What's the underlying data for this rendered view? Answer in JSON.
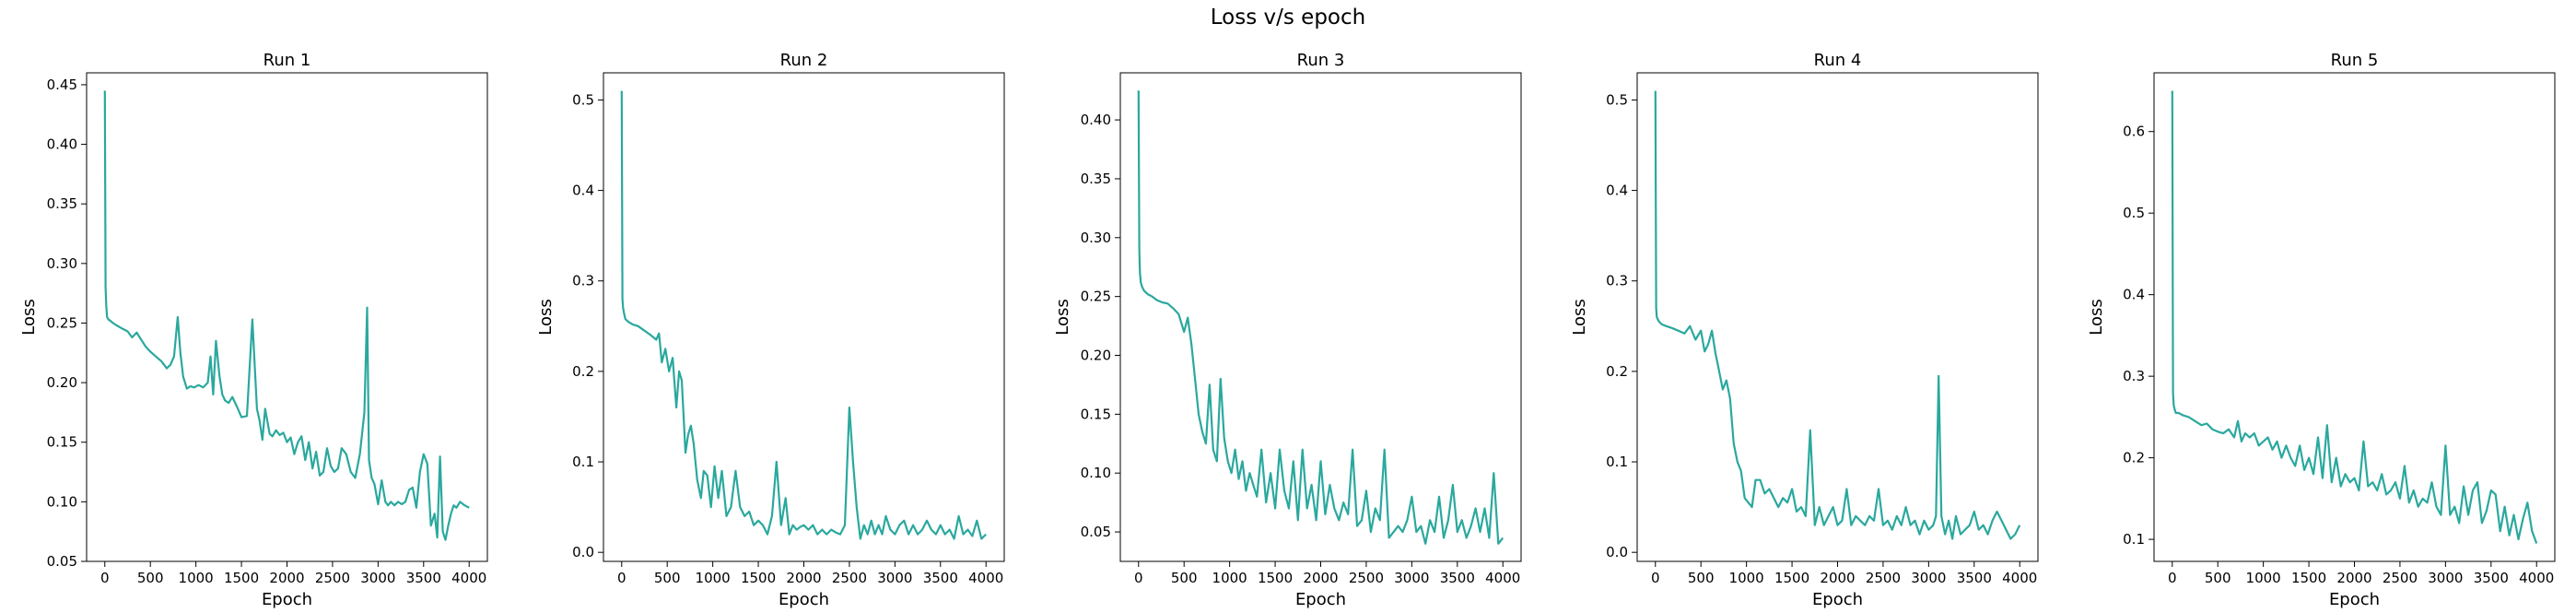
{
  "figure": {
    "suptitle": "Loss v/s epoch",
    "line_color": "#2aa89e"
  },
  "chart_data": [
    {
      "type": "line",
      "title": "Run 1",
      "xlabel": "Epoch",
      "ylabel": "Loss",
      "xlim": [
        -200,
        4200
      ],
      "ylim": [
        0.05,
        0.46
      ],
      "xticks": [
        0,
        500,
        1000,
        1500,
        2000,
        2500,
        3000,
        3500,
        4000
      ],
      "yticks": [
        0.05,
        0.1,
        0.15,
        0.2,
        0.25,
        0.3,
        0.35,
        0.4,
        0.45
      ],
      "ytick_labels": [
        "0.05",
        "0.10",
        "0.15",
        "0.20",
        "0.25",
        "0.30",
        "0.35",
        "0.40",
        "0.45"
      ],
      "x": [
        0,
        8,
        15,
        25,
        40,
        60,
        90,
        130,
        200,
        250,
        300,
        350,
        400,
        450,
        500,
        560,
        620,
        680,
        720,
        760,
        800,
        830,
        860,
        900,
        940,
        980,
        1030,
        1080,
        1130,
        1160,
        1190,
        1220,
        1260,
        1290,
        1320,
        1360,
        1400,
        1450,
        1500,
        1560,
        1620,
        1670,
        1700,
        1730,
        1760,
        1810,
        1840,
        1880,
        1920,
        1960,
        2000,
        2040,
        2080,
        2120,
        2160,
        2200,
        2240,
        2280,
        2320,
        2360,
        2400,
        2440,
        2480,
        2520,
        2560,
        2600,
        2650,
        2700,
        2750,
        2800,
        2850,
        2880,
        2900,
        2930,
        2960,
        3000,
        3040,
        3080,
        3110,
        3140,
        3180,
        3220,
        3260,
        3300,
        3340,
        3380,
        3420,
        3460,
        3500,
        3540,
        3580,
        3620,
        3650,
        3680,
        3710,
        3740,
        3770,
        3800,
        3830,
        3860,
        3900,
        3950,
        4000
      ],
      "y": [
        0.445,
        0.28,
        0.265,
        0.255,
        0.253,
        0.252,
        0.25,
        0.248,
        0.245,
        0.243,
        0.238,
        0.242,
        0.236,
        0.23,
        0.226,
        0.222,
        0.218,
        0.212,
        0.215,
        0.222,
        0.255,
        0.225,
        0.205,
        0.195,
        0.197,
        0.196,
        0.198,
        0.196,
        0.2,
        0.222,
        0.19,
        0.235,
        0.205,
        0.19,
        0.185,
        0.183,
        0.188,
        0.18,
        0.171,
        0.172,
        0.253,
        0.178,
        0.168,
        0.152,
        0.178,
        0.157,
        0.155,
        0.16,
        0.156,
        0.158,
        0.15,
        0.154,
        0.14,
        0.15,
        0.155,
        0.135,
        0.15,
        0.128,
        0.142,
        0.122,
        0.125,
        0.145,
        0.13,
        0.125,
        0.128,
        0.145,
        0.14,
        0.125,
        0.12,
        0.14,
        0.175,
        0.263,
        0.135,
        0.12,
        0.115,
        0.098,
        0.118,
        0.1,
        0.097,
        0.1,
        0.097,
        0.1,
        0.098,
        0.1,
        0.11,
        0.112,
        0.095,
        0.125,
        0.14,
        0.132,
        0.08,
        0.09,
        0.07,
        0.138,
        0.075,
        0.068,
        0.08,
        0.09,
        0.097,
        0.095,
        0.1,
        0.097,
        0.095
      ],
      "grid": false,
      "legend": "none"
    },
    {
      "type": "line",
      "title": "Run 2",
      "xlabel": "Epoch",
      "ylabel": "Loss",
      "xlim": [
        -200,
        4200
      ],
      "ylim": [
        -0.01,
        0.53
      ],
      "xticks": [
        0,
        500,
        1000,
        1500,
        2000,
        2500,
        3000,
        3500,
        4000
      ],
      "yticks": [
        0.0,
        0.1,
        0.2,
        0.3,
        0.4,
        0.5
      ],
      "ytick_labels": [
        "0.0",
        "0.1",
        "0.2",
        "0.3",
        "0.4",
        "0.5"
      ],
      "x": [
        0,
        8,
        15,
        25,
        40,
        70,
        120,
        180,
        250,
        320,
        380,
        410,
        440,
        480,
        520,
        560,
        600,
        630,
        660,
        700,
        730,
        760,
        790,
        830,
        870,
        900,
        940,
        980,
        1020,
        1060,
        1100,
        1150,
        1200,
        1250,
        1300,
        1350,
        1400,
        1450,
        1500,
        1550,
        1600,
        1650,
        1700,
        1750,
        1800,
        1840,
        1880,
        1920,
        1960,
        2000,
        2050,
        2100,
        2150,
        2200,
        2250,
        2300,
        2350,
        2400,
        2450,
        2500,
        2540,
        2580,
        2620,
        2660,
        2700,
        2740,
        2780,
        2820,
        2860,
        2900,
        2950,
        3000,
        3050,
        3100,
        3150,
        3200,
        3250,
        3300,
        3350,
        3400,
        3450,
        3500,
        3550,
        3600,
        3650,
        3700,
        3750,
        3800,
        3850,
        3900,
        3950,
        4000
      ],
      "y": [
        0.51,
        0.28,
        0.27,
        0.265,
        0.258,
        0.255,
        0.252,
        0.25,
        0.245,
        0.24,
        0.235,
        0.242,
        0.21,
        0.225,
        0.2,
        0.215,
        0.16,
        0.2,
        0.19,
        0.11,
        0.13,
        0.14,
        0.12,
        0.08,
        0.06,
        0.09,
        0.085,
        0.05,
        0.095,
        0.06,
        0.09,
        0.04,
        0.05,
        0.09,
        0.05,
        0.04,
        0.045,
        0.03,
        0.035,
        0.03,
        0.02,
        0.04,
        0.1,
        0.03,
        0.06,
        0.02,
        0.03,
        0.025,
        0.028,
        0.03,
        0.025,
        0.03,
        0.02,
        0.025,
        0.02,
        0.025,
        0.022,
        0.02,
        0.03,
        0.16,
        0.1,
        0.05,
        0.015,
        0.03,
        0.02,
        0.035,
        0.02,
        0.03,
        0.02,
        0.04,
        0.025,
        0.02,
        0.03,
        0.035,
        0.02,
        0.03,
        0.02,
        0.025,
        0.035,
        0.025,
        0.02,
        0.03,
        0.02,
        0.025,
        0.015,
        0.04,
        0.02,
        0.025,
        0.018,
        0.035,
        0.015,
        0.02
      ]
    },
    {
      "type": "line",
      "title": "Run 3",
      "xlabel": "Epoch",
      "ylabel": "Loss",
      "xlim": [
        -200,
        4200
      ],
      "ylim": [
        0.025,
        0.44
      ],
      "xticks": [
        0,
        500,
        1000,
        1500,
        2000,
        2500,
        3000,
        3500,
        4000
      ],
      "yticks": [
        0.05,
        0.1,
        0.15,
        0.2,
        0.25,
        0.3,
        0.35,
        0.4
      ],
      "ytick_labels": [
        "0.05",
        "0.10",
        "0.15",
        "0.20",
        "0.25",
        "0.30",
        "0.35",
        "0.40"
      ],
      "x": [
        0,
        8,
        15,
        25,
        40,
        60,
        100,
        150,
        200,
        260,
        320,
        380,
        440,
        500,
        540,
        580,
        620,
        660,
        700,
        740,
        780,
        820,
        860,
        900,
        940,
        980,
        1020,
        1060,
        1100,
        1140,
        1180,
        1220,
        1260,
        1300,
        1350,
        1400,
        1450,
        1500,
        1550,
        1600,
        1650,
        1700,
        1750,
        1800,
        1850,
        1900,
        1950,
        2000,
        2050,
        2100,
        2150,
        2200,
        2250,
        2300,
        2350,
        2400,
        2450,
        2500,
        2550,
        2600,
        2650,
        2700,
        2750,
        2800,
        2850,
        2900,
        2950,
        3000,
        3050,
        3100,
        3150,
        3200,
        3250,
        3300,
        3350,
        3400,
        3450,
        3500,
        3550,
        3600,
        3650,
        3700,
        3750,
        3800,
        3850,
        3900,
        3950,
        4000
      ],
      "y": [
        0.425,
        0.29,
        0.27,
        0.262,
        0.258,
        0.255,
        0.252,
        0.25,
        0.247,
        0.245,
        0.244,
        0.24,
        0.235,
        0.22,
        0.232,
        0.21,
        0.18,
        0.15,
        0.135,
        0.125,
        0.175,
        0.12,
        0.11,
        0.18,
        0.13,
        0.11,
        0.1,
        0.12,
        0.095,
        0.11,
        0.085,
        0.1,
        0.09,
        0.08,
        0.12,
        0.075,
        0.1,
        0.07,
        0.12,
        0.085,
        0.07,
        0.11,
        0.06,
        0.12,
        0.07,
        0.09,
        0.06,
        0.11,
        0.065,
        0.09,
        0.07,
        0.06,
        0.075,
        0.065,
        0.12,
        0.055,
        0.06,
        0.085,
        0.05,
        0.07,
        0.06,
        0.12,
        0.045,
        0.05,
        0.055,
        0.05,
        0.06,
        0.08,
        0.05,
        0.055,
        0.04,
        0.06,
        0.05,
        0.08,
        0.045,
        0.06,
        0.09,
        0.05,
        0.06,
        0.045,
        0.055,
        0.07,
        0.05,
        0.07,
        0.045,
        0.1,
        0.04,
        0.045
      ]
    },
    {
      "type": "line",
      "title": "Run 4",
      "xlabel": "Epoch",
      "ylabel": "Loss",
      "xlim": [
        -200,
        4200
      ],
      "ylim": [
        -0.01,
        0.53
      ],
      "xticks": [
        0,
        500,
        1000,
        1500,
        2000,
        2500,
        3000,
        3500,
        4000
      ],
      "yticks": [
        0.0,
        0.1,
        0.2,
        0.3,
        0.4,
        0.5
      ],
      "ytick_labels": [
        "0.0",
        "0.1",
        "0.2",
        "0.3",
        "0.4",
        "0.5"
      ],
      "x": [
        0,
        8,
        15,
        25,
        40,
        70,
        120,
        180,
        250,
        320,
        380,
        440,
        500,
        540,
        580,
        620,
        660,
        700,
        740,
        780,
        820,
        860,
        900,
        940,
        980,
        1020,
        1060,
        1100,
        1150,
        1200,
        1250,
        1300,
        1350,
        1400,
        1450,
        1500,
        1550,
        1600,
        1650,
        1700,
        1750,
        1800,
        1850,
        1900,
        1950,
        2000,
        2050,
        2100,
        2150,
        2200,
        2250,
        2300,
        2350,
        2400,
        2450,
        2500,
        2550,
        2600,
        2650,
        2700,
        2750,
        2800,
        2850,
        2900,
        2950,
        3000,
        3050,
        3080,
        3110,
        3140,
        3180,
        3220,
        3260,
        3300,
        3350,
        3400,
        3450,
        3500,
        3550,
        3600,
        3650,
        3700,
        3750,
        3800,
        3850,
        3900,
        3950,
        4000
      ],
      "y": [
        0.51,
        0.27,
        0.26,
        0.258,
        0.255,
        0.252,
        0.25,
        0.248,
        0.245,
        0.242,
        0.25,
        0.235,
        0.245,
        0.222,
        0.23,
        0.245,
        0.22,
        0.2,
        0.18,
        0.19,
        0.17,
        0.12,
        0.1,
        0.09,
        0.06,
        0.055,
        0.05,
        0.08,
        0.08,
        0.065,
        0.07,
        0.06,
        0.05,
        0.06,
        0.055,
        0.07,
        0.045,
        0.05,
        0.04,
        0.135,
        0.03,
        0.05,
        0.03,
        0.04,
        0.05,
        0.03,
        0.035,
        0.07,
        0.03,
        0.04,
        0.035,
        0.03,
        0.04,
        0.035,
        0.07,
        0.03,
        0.035,
        0.025,
        0.04,
        0.03,
        0.05,
        0.03,
        0.035,
        0.02,
        0.035,
        0.025,
        0.03,
        0.04,
        0.195,
        0.04,
        0.02,
        0.035,
        0.015,
        0.04,
        0.02,
        0.025,
        0.03,
        0.045,
        0.025,
        0.03,
        0.02,
        0.035,
        0.045,
        0.035,
        0.025,
        0.015,
        0.02,
        0.03
      ]
    },
    {
      "type": "line",
      "title": "Run 5",
      "xlabel": "Epoch",
      "ylabel": "Loss",
      "xlim": [
        -200,
        4200
      ],
      "ylim": [
        0.073,
        0.672
      ],
      "xticks": [
        0,
        500,
        1000,
        1500,
        2000,
        2500,
        3000,
        3500,
        4000
      ],
      "yticks": [
        0.1,
        0.2,
        0.3,
        0.4,
        0.5,
        0.6
      ],
      "ytick_labels": [
        "0.1",
        "0.2",
        "0.3",
        "0.4",
        "0.5",
        "0.6"
      ],
      "x": [
        0,
        8,
        15,
        25,
        40,
        70,
        120,
        180,
        250,
        320,
        380,
        440,
        500,
        560,
        620,
        680,
        720,
        760,
        800,
        850,
        900,
        950,
        1000,
        1050,
        1100,
        1150,
        1200,
        1250,
        1300,
        1350,
        1400,
        1450,
        1500,
        1550,
        1600,
        1650,
        1700,
        1750,
        1800,
        1850,
        1900,
        1950,
        2000,
        2050,
        2100,
        2150,
        2200,
        2250,
        2300,
        2350,
        2400,
        2450,
        2500,
        2550,
        2600,
        2650,
        2700,
        2750,
        2800,
        2850,
        2900,
        2950,
        3000,
        3050,
        3100,
        3150,
        3200,
        3250,
        3300,
        3350,
        3400,
        3450,
        3500,
        3550,
        3600,
        3650,
        3700,
        3750,
        3800,
        3850,
        3900,
        3950,
        4000
      ],
      "y": [
        0.65,
        0.28,
        0.265,
        0.26,
        0.255,
        0.255,
        0.252,
        0.25,
        0.245,
        0.24,
        0.242,
        0.235,
        0.232,
        0.23,
        0.235,
        0.225,
        0.245,
        0.22,
        0.23,
        0.225,
        0.23,
        0.215,
        0.22,
        0.225,
        0.21,
        0.22,
        0.2,
        0.215,
        0.2,
        0.19,
        0.215,
        0.185,
        0.2,
        0.18,
        0.225,
        0.175,
        0.24,
        0.17,
        0.2,
        0.165,
        0.18,
        0.17,
        0.175,
        0.16,
        0.22,
        0.165,
        0.17,
        0.16,
        0.18,
        0.155,
        0.16,
        0.17,
        0.15,
        0.19,
        0.145,
        0.16,
        0.14,
        0.15,
        0.145,
        0.17,
        0.14,
        0.13,
        0.215,
        0.13,
        0.14,
        0.12,
        0.165,
        0.13,
        0.16,
        0.17,
        0.12,
        0.135,
        0.16,
        0.155,
        0.11,
        0.14,
        0.105,
        0.13,
        0.1,
        0.125,
        0.145,
        0.11,
        0.095
      ]
    }
  ]
}
